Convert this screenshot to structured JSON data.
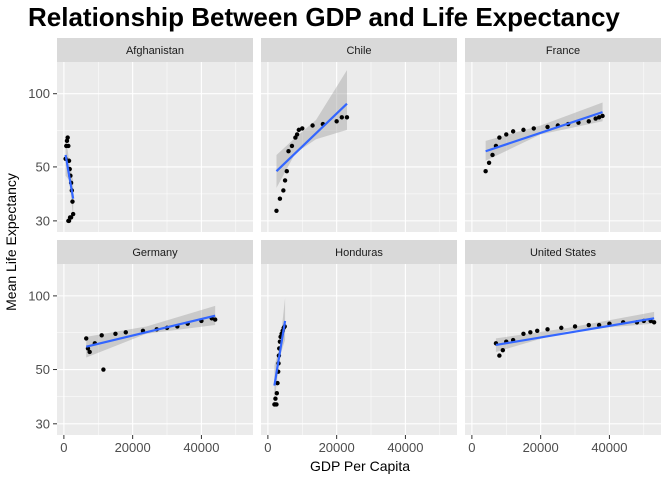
{
  "chart_data": {
    "type": "scatter",
    "title": "Relationship Between GDP and Life Expectancy",
    "xlabel": "GDP Per Capita",
    "ylabel": "Mean Life Expectancy",
    "x_scale": "linear",
    "y_scale": "log",
    "xlim": [
      -2000,
      55000
    ],
    "ylim": [
      27,
      135
    ],
    "x_ticks": [
      0,
      20000,
      40000
    ],
    "x_tick_labels": [
      "0",
      "20000",
      "40000"
    ],
    "y_ticks": [
      30,
      50,
      100
    ],
    "y_tick_labels": [
      "30",
      "50",
      "100"
    ],
    "grid": true,
    "trend": "linear fit with confidence band",
    "colors": {
      "point": "#000000",
      "trend_line": "#3366FF",
      "confidence_band": "#999999",
      "panel_background": "#EBEBEB",
      "strip_background": "#D9D9D9",
      "grid": "#FFFFFF"
    },
    "panels": [
      {
        "name": "Afghanistan",
        "points": [
          [
            500,
            54
          ],
          [
            700,
            61
          ],
          [
            900,
            64
          ],
          [
            1100,
            66
          ],
          [
            1300,
            61
          ],
          [
            1500,
            53
          ],
          [
            1700,
            49
          ],
          [
            1900,
            46
          ],
          [
            2100,
            43
          ],
          [
            2300,
            40
          ],
          [
            2500,
            36
          ],
          [
            2700,
            32
          ],
          [
            2100,
            31
          ],
          [
            1800,
            31
          ],
          [
            1500,
            30
          ],
          [
            1300,
            30
          ]
        ],
        "fit": {
          "x": [
            500,
            2700
          ],
          "y": [
            56,
            37
          ]
        },
        "band": {
          "x": [
            500,
            1600,
            2700
          ],
          "upper": [
            68,
            52,
            44
          ],
          "lower": [
            46,
            44,
            31
          ]
        }
      },
      {
        "name": "Chile",
        "points": [
          [
            2500,
            33
          ],
          [
            3500,
            37
          ],
          [
            4500,
            40
          ],
          [
            5000,
            44
          ],
          [
            5500,
            48
          ],
          [
            6000,
            58
          ],
          [
            7000,
            61
          ],
          [
            8000,
            66
          ],
          [
            8500,
            68
          ],
          [
            9000,
            71
          ],
          [
            10000,
            72
          ],
          [
            13000,
            74
          ],
          [
            16000,
            75
          ],
          [
            20000,
            77
          ],
          [
            21500,
            80
          ],
          [
            23000,
            80
          ]
        ],
        "fit": {
          "x": [
            2500,
            23000
          ],
          "y": [
            48,
            91
          ]
        },
        "band": {
          "x": [
            2500,
            8000,
            14000,
            23000
          ],
          "upper": [
            56,
            66,
            78,
            125
          ],
          "lower": [
            41,
            57,
            65,
            71
          ]
        }
      },
      {
        "name": "France",
        "points": [
          [
            4000,
            48
          ],
          [
            5000,
            52
          ],
          [
            6000,
            56
          ],
          [
            7000,
            61
          ],
          [
            8000,
            66
          ],
          [
            10000,
            68
          ],
          [
            12000,
            70
          ],
          [
            15000,
            71
          ],
          [
            18000,
            72
          ],
          [
            22000,
            73
          ],
          [
            25000,
            74
          ],
          [
            28000,
            75
          ],
          [
            31000,
            76
          ],
          [
            34000,
            77
          ],
          [
            36000,
            79
          ],
          [
            37000,
            80
          ],
          [
            38000,
            81
          ]
        ],
        "fit": {
          "x": [
            4000,
            38000
          ],
          "y": [
            58,
            84
          ]
        },
        "band": {
          "x": [
            4000,
            20000,
            38000
          ],
          "upper": [
            64,
            74,
            92
          ],
          "lower": [
            53,
            68,
            77
          ]
        }
      },
      {
        "name": "Germany",
        "points": [
          [
            6500,
            67
          ],
          [
            7000,
            61
          ],
          [
            7500,
            59
          ],
          [
            9000,
            64
          ],
          [
            11000,
            69
          ],
          [
            11500,
            50
          ],
          [
            15000,
            70
          ],
          [
            18000,
            71
          ],
          [
            23000,
            72
          ],
          [
            27000,
            73
          ],
          [
            30000,
            74
          ],
          [
            33000,
            75
          ],
          [
            36000,
            77
          ],
          [
            40000,
            79
          ],
          [
            43000,
            81
          ],
          [
            44000,
            80
          ]
        ],
        "fit": {
          "x": [
            6500,
            44000
          ],
          "y": [
            62,
            83
          ]
        },
        "band": {
          "x": [
            6500,
            24000,
            44000
          ],
          "upper": [
            68,
            75,
            91
          ],
          "lower": [
            56,
            70,
            76
          ]
        }
      },
      {
        "name": "Honduras",
        "points": [
          [
            1900,
            36
          ],
          [
            2100,
            36
          ],
          [
            2200,
            38
          ],
          [
            2500,
            36
          ],
          [
            2600,
            40
          ],
          [
            2800,
            44
          ],
          [
            3000,
            49
          ],
          [
            3100,
            53
          ],
          [
            3200,
            57
          ],
          [
            3300,
            61
          ],
          [
            3500,
            65
          ],
          [
            3700,
            68
          ],
          [
            4000,
            70
          ],
          [
            4300,
            72
          ],
          [
            4600,
            74
          ],
          [
            4900,
            75
          ]
        ],
        "fit": {
          "x": [
            1900,
            5000
          ],
          "y": [
            43,
            79
          ]
        },
        "band": {
          "x": [
            1900,
            3400,
            5000
          ],
          "upper": [
            52,
            61,
            98
          ],
          "lower": [
            36,
            56,
            66
          ]
        }
      },
      {
        "name": "United States",
        "points": [
          [
            7000,
            64
          ],
          [
            8000,
            57
          ],
          [
            9000,
            60
          ],
          [
            10000,
            65
          ],
          [
            12000,
            66
          ],
          [
            15000,
            70
          ],
          [
            17000,
            71
          ],
          [
            19000,
            72
          ],
          [
            22000,
            73
          ],
          [
            26000,
            74
          ],
          [
            30000,
            75
          ],
          [
            34000,
            76
          ],
          [
            37000,
            76
          ],
          [
            40000,
            77
          ],
          [
            44000,
            78
          ],
          [
            48000,
            78
          ],
          [
            50000,
            79
          ],
          [
            52000,
            79
          ],
          [
            53000,
            78
          ]
        ],
        "fit": {
          "x": [
            7000,
            53000
          ],
          "y": [
            63,
            81
          ]
        },
        "band": {
          "x": [
            7000,
            28000,
            53000
          ],
          "upper": [
            67,
            74,
            86
          ],
          "lower": [
            59,
            72,
            77
          ]
        }
      }
    ]
  }
}
